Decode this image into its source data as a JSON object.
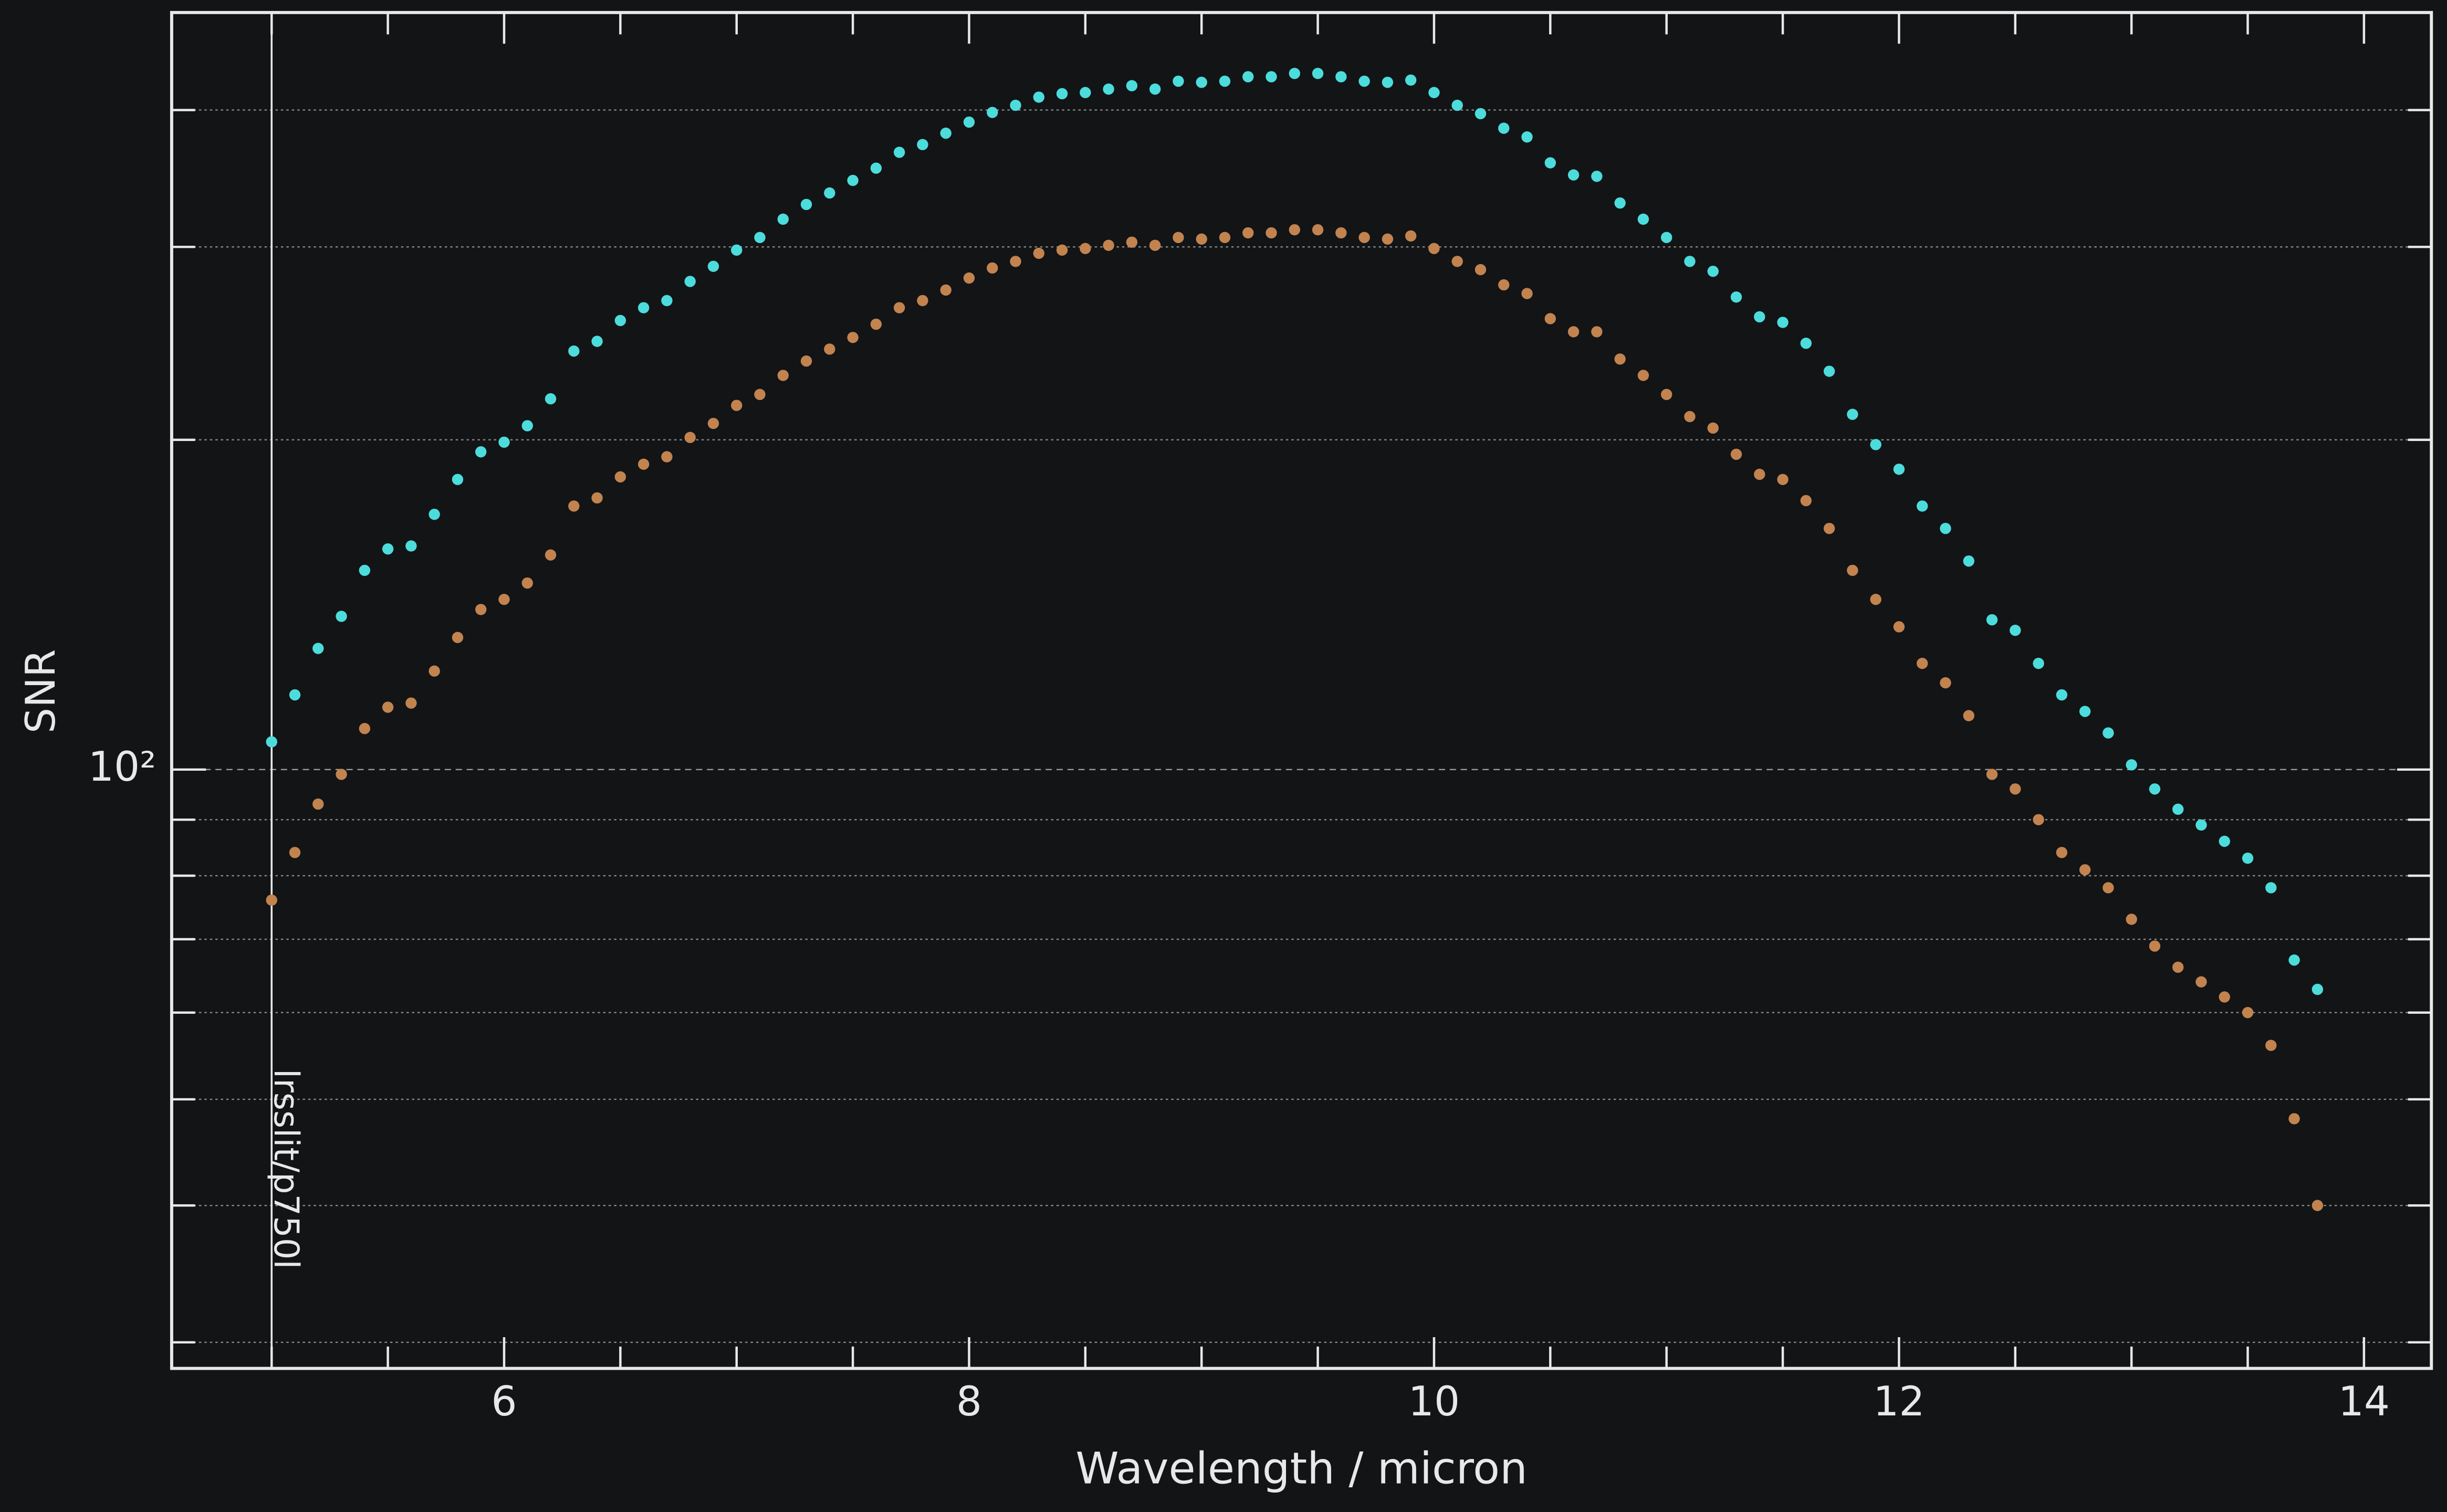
{
  "chart_data": {
    "type": "scatter",
    "xlabel": "Wavelength / micron",
    "ylabel": "SNR",
    "log_y": true,
    "grid": true,
    "xlim": [
      4.57,
      14.29
    ],
    "ylim": [
      28.4,
      491
    ],
    "xticks": [
      6,
      8,
      10,
      12,
      14
    ],
    "minor_xticks": [
      5,
      5.5,
      6.5,
      7,
      7.5,
      8.5,
      9,
      9.5,
      10.5,
      11,
      11.5,
      12.5,
      13,
      13.5
    ],
    "yticks": [
      {
        "value": 100,
        "label": "10²"
      }
    ],
    "minor_yticks": [
      30,
      40,
      50,
      60,
      70,
      80,
      90,
      200,
      300,
      400
    ],
    "vline": {
      "x": 5,
      "label": "lrsslit/p750l"
    },
    "x": [
      5.0,
      5.1,
      5.2,
      5.3,
      5.4,
      5.5,
      5.6,
      5.7,
      5.8,
      5.9,
      6.0,
      6.1,
      6.2,
      6.3,
      6.4,
      6.5,
      6.6,
      6.7,
      6.8,
      6.9,
      7.0,
      7.1,
      7.2,
      7.3,
      7.4,
      7.5,
      7.6,
      7.7,
      7.8,
      7.9,
      8.0,
      8.1,
      8.2,
      8.3,
      8.4,
      8.5,
      8.6,
      8.7,
      8.8,
      8.9,
      9.0,
      9.1,
      9.2,
      9.3,
      9.4,
      9.5,
      9.6,
      9.7,
      9.8,
      9.9,
      10.0,
      10.1,
      10.2,
      10.3,
      10.4,
      10.5,
      10.6,
      10.7,
      10.8,
      10.9,
      11.0,
      11.1,
      11.2,
      11.3,
      11.4,
      11.5,
      11.6,
      11.7,
      11.8,
      11.9,
      12.0,
      12.1,
      12.2,
      12.3,
      12.4,
      12.5,
      12.6,
      12.7,
      12.8,
      12.9,
      13.0,
      13.1,
      13.2,
      13.3,
      13.4,
      13.5,
      13.6,
      13.7,
      13.8
    ],
    "series": [
      {
        "color": "#4ddcdc",
        "values": [
          106,
          117,
          129,
          138,
          152,
          159,
          160,
          171,
          184,
          195,
          199,
          206,
          218,
          241,
          246,
          257,
          264,
          268,
          279,
          288,
          298,
          306,
          318,
          328,
          336,
          345,
          354,
          366,
          372,
          381,
          390,
          398,
          404,
          411,
          414,
          415,
          418,
          421,
          418,
          425,
          424,
          425,
          429,
          429,
          432,
          432,
          429,
          425,
          424,
          426,
          415,
          404,
          397,
          385,
          378,
          358,
          349,
          348,
          329,
          318,
          306,
          291,
          285,
          270,
          259,
          256,
          245,
          231,
          211,
          198,
          188,
          174,
          166,
          155,
          137,
          134,
          125,
          117,
          113,
          108,
          101,
          96,
          92,
          89,
          86,
          83,
          78,
          67,
          63
        ]
      },
      {
        "color": "#c2834f",
        "values": [
          76,
          84,
          93,
          99,
          109,
          114,
          115,
          123,
          132,
          140,
          143,
          148,
          157,
          174,
          177,
          185,
          190,
          193,
          201,
          207,
          215,
          220,
          229,
          236,
          242,
          248,
          255,
          264,
          268,
          274,
          281,
          287,
          291,
          296,
          298,
          299,
          301,
          303,
          301,
          306,
          305,
          306,
          309,
          309,
          311,
          311,
          309,
          306,
          305,
          307,
          299,
          291,
          286,
          277,
          272,
          258,
          251,
          251,
          237,
          229,
          220,
          210,
          205,
          194,
          186,
          184,
          176,
          166,
          152,
          143,
          135,
          125,
          120,
          112,
          99,
          96,
          90,
          84,
          81,
          78,
          73,
          69,
          66,
          64,
          62,
          60,
          56,
          48,
          40
        ]
      }
    ]
  }
}
